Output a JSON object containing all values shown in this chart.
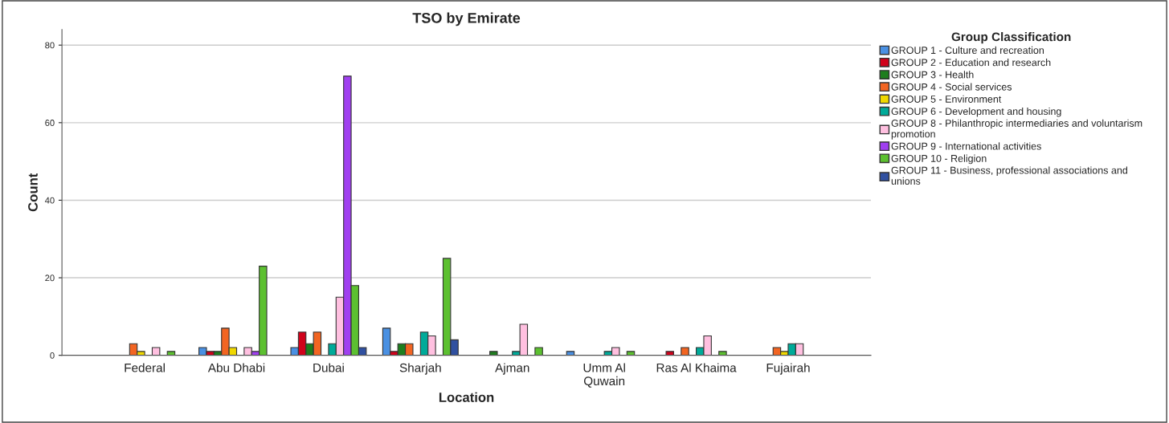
{
  "chart_data": {
    "type": "bar",
    "title": "TSO by Emirate",
    "xlabel": "Location",
    "ylabel": "Count",
    "legend_title": "Group Classification",
    "categories": [
      "Federal",
      "Abu Dhabi",
      "Dubai",
      "Sharjah",
      "Ajman",
      "Umm Al\nQuwain",
      "Ras Al Khaima",
      "Fujairah"
    ],
    "series": [
      {
        "name": "GROUP 1 - Culture and recreation",
        "color": "#4a90e2",
        "values": [
          null,
          2,
          2,
          7,
          null,
          1,
          null,
          null
        ]
      },
      {
        "name": "GROUP 2 - Education and research",
        "color": "#d0021b",
        "values": [
          null,
          1,
          6,
          1,
          null,
          null,
          1,
          null
        ]
      },
      {
        "name": "GROUP 3 - Health",
        "color": "#1e7e1e",
        "values": [
          null,
          1,
          3,
          3,
          1,
          null,
          null,
          null
        ]
      },
      {
        "name": "GROUP 4 - Social services",
        "color": "#f26522",
        "values": [
          3,
          7,
          6,
          3,
          null,
          null,
          2,
          2
        ]
      },
      {
        "name": "GROUP 5 - Environment",
        "color": "#f0d800",
        "values": [
          1,
          2,
          null,
          null,
          null,
          null,
          null,
          1
        ]
      },
      {
        "name": "GROUP 6 - Development and housing",
        "color": "#00aa99",
        "values": [
          null,
          null,
          3,
          6,
          1,
          1,
          2,
          3
        ]
      },
      {
        "name": "GROUP 8 - Philanthropic intermediaries and voluntarism\npromotion",
        "color": "#ffc0e0",
        "values": [
          2,
          2,
          15,
          5,
          8,
          2,
          5,
          3
        ]
      },
      {
        "name": "GROUP 9 - International activities",
        "color": "#a040f0",
        "values": [
          null,
          1,
          72,
          null,
          null,
          null,
          null,
          null
        ]
      },
      {
        "name": "GROUP 10 - Religion",
        "color": "#5cc030",
        "values": [
          1,
          23,
          18,
          25,
          2,
          1,
          1,
          null
        ]
      },
      {
        "name": "GROUP 11 - Business, professional associations and\nunions",
        "color": "#3050a0",
        "values": [
          null,
          null,
          2,
          4,
          null,
          null,
          null,
          null
        ]
      }
    ],
    "ylim": [
      0,
      84
    ],
    "yticks": [
      0,
      20,
      40,
      60,
      80
    ],
    "grid": "y",
    "legend": "top right"
  }
}
